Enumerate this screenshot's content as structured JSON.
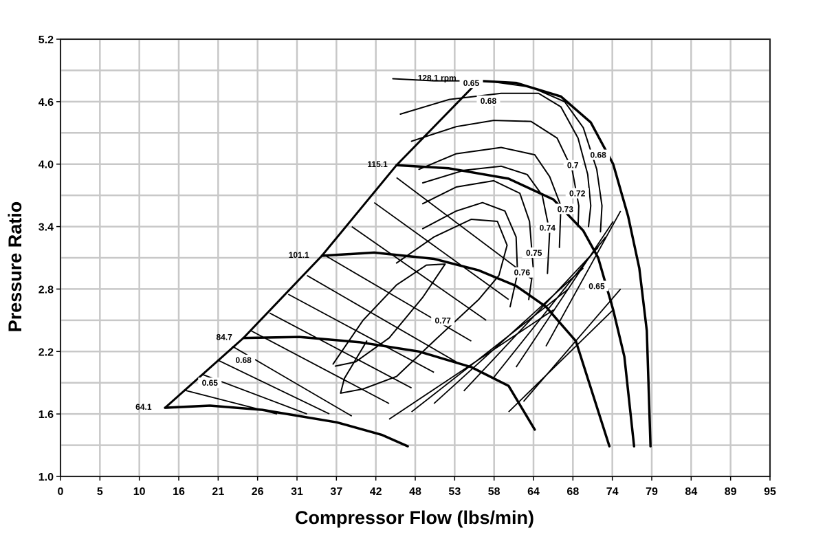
{
  "chart_data": {
    "type": "line",
    "title": "",
    "xlabel": "Compressor Flow (lbs/min)",
    "ylabel": "Pressure Ratio",
    "xlim": [
      0,
      95
    ],
    "ylim": [
      1.0,
      5.2
    ],
    "grid": true,
    "x_tick_labels": [
      "0",
      "5",
      "10",
      "16",
      "21",
      "26",
      "31",
      "37",
      "42",
      "48",
      "53",
      "58",
      "64",
      "68",
      "74",
      "79",
      "84",
      "89",
      "95"
    ],
    "y_tick_labels": [
      "1.0",
      "1.6",
      "2.2",
      "2.8",
      "3.4",
      "4.0",
      "4.6",
      "5.2"
    ],
    "speed_lines": [
      {
        "name": "64.1",
        "points": [
          [
            14,
            1.66
          ],
          [
            20,
            1.68
          ],
          [
            27,
            1.64
          ],
          [
            37,
            1.52
          ],
          [
            43,
            1.4
          ],
          [
            46.5,
            1.29
          ]
        ]
      },
      {
        "name": "84.7",
        "points": [
          [
            24.5,
            2.33
          ],
          [
            32,
            2.34
          ],
          [
            40,
            2.29
          ],
          [
            48,
            2.2
          ],
          [
            55,
            2.05
          ],
          [
            60,
            1.87
          ],
          [
            63.5,
            1.45
          ]
        ]
      },
      {
        "name": "101.1",
        "points": [
          [
            35,
            3.12
          ],
          [
            42,
            3.15
          ],
          [
            50,
            3.09
          ],
          [
            56,
            2.98
          ],
          [
            61,
            2.83
          ],
          [
            65,
            2.63
          ],
          [
            69,
            2.3
          ],
          [
            73.5,
            1.29
          ]
        ]
      },
      {
        "name": "115.1",
        "points": [
          [
            45,
            3.99
          ],
          [
            52,
            3.96
          ],
          [
            60,
            3.86
          ],
          [
            66,
            3.66
          ],
          [
            70,
            3.36
          ],
          [
            72,
            3.1
          ],
          [
            74,
            2.6
          ],
          [
            75.5,
            2.15
          ],
          [
            76.8,
            1.29
          ]
        ]
      },
      {
        "name": "128.1 rpm",
        "points": [
          [
            56,
            4.8
          ],
          [
            61,
            4.78
          ],
          [
            67,
            4.65
          ],
          [
            71,
            4.4
          ],
          [
            74,
            4.0
          ],
          [
            76,
            3.5
          ],
          [
            77.5,
            3.0
          ],
          [
            78.5,
            2.4
          ],
          [
            79,
            1.29
          ]
        ]
      }
    ],
    "surge_line": [
      [
        14,
        1.66
      ],
      [
        24.5,
        2.33
      ],
      [
        35,
        3.12
      ],
      [
        45,
        3.99
      ],
      [
        56,
        4.8
      ]
    ],
    "efficiency_labels": [
      "0.65",
      "0.68",
      "0.7",
      "0.72",
      "0.73",
      "0.74",
      "0.75",
      "0.76",
      "0.77",
      "0.68",
      "0.65"
    ],
    "efficiency_islands": [
      {
        "name": "0.65",
        "points": [
          [
            44.5,
            4.82
          ],
          [
            50,
            4.8
          ],
          [
            57,
            4.8
          ],
          [
            63,
            4.74
          ],
          [
            67.5,
            4.6
          ],
          [
            70,
            4.35
          ],
          [
            71.8,
            3.95
          ],
          [
            72.5,
            3.6
          ],
          [
            72.3,
            3.35
          ]
        ]
      },
      {
        "name": "0.68",
        "points": [
          [
            45.5,
            4.48
          ],
          [
            52,
            4.62
          ],
          [
            59,
            4.68
          ],
          [
            64,
            4.68
          ],
          [
            67,
            4.55
          ],
          [
            69.3,
            4.25
          ],
          [
            70.6,
            3.9
          ],
          [
            71,
            3.6
          ],
          [
            70.7,
            3.4
          ]
        ]
      },
      {
        "name": "0.7",
        "points": [
          [
            47,
            4.22
          ],
          [
            53,
            4.36
          ],
          [
            58,
            4.42
          ],
          [
            63,
            4.41
          ],
          [
            66.5,
            4.25
          ],
          [
            68.5,
            3.95
          ],
          [
            69.4,
            3.6
          ],
          [
            69.3,
            3.4
          ]
        ]
      },
      {
        "name": "0.72",
        "points": [
          [
            48,
            3.95
          ],
          [
            53,
            4.1
          ],
          [
            59,
            4.16
          ],
          [
            63.5,
            4.09
          ],
          [
            65.5,
            3.88
          ],
          [
            67,
            3.6
          ],
          [
            66.8,
            3.2
          ]
        ]
      },
      {
        "name": "0.73",
        "points": [
          [
            48.5,
            3.82
          ],
          [
            54,
            3.94
          ],
          [
            59,
            3.98
          ],
          [
            62.5,
            3.9
          ],
          [
            64.5,
            3.7
          ],
          [
            65.5,
            3.35
          ],
          [
            65.2,
            2.95
          ]
        ]
      },
      {
        "name": "0.74",
        "points": [
          [
            48.5,
            3.62
          ],
          [
            53,
            3.78
          ],
          [
            58,
            3.84
          ],
          [
            61.5,
            3.72
          ],
          [
            62.8,
            3.45
          ],
          [
            63.3,
            3.0
          ],
          [
            62.7,
            2.7
          ]
        ]
      },
      {
        "name": "0.75",
        "points": [
          [
            48.5,
            3.38
          ],
          [
            53,
            3.55
          ],
          [
            56.5,
            3.63
          ],
          [
            59.5,
            3.55
          ],
          [
            61,
            3.3
          ],
          [
            61.2,
            2.95
          ],
          [
            60.2,
            2.63
          ]
        ]
      },
      {
        "name": "0.76",
        "points": [
          [
            45,
            3.05
          ],
          [
            50,
            3.3
          ],
          [
            55,
            3.47
          ],
          [
            58.5,
            3.45
          ],
          [
            59.8,
            3.22
          ],
          [
            58.7,
            2.93
          ],
          [
            56,
            2.7
          ],
          [
            50,
            2.3
          ],
          [
            45,
            1.96
          ],
          [
            40.5,
            1.84
          ],
          [
            37.5,
            1.8
          ],
          [
            38,
            1.94
          ],
          [
            41,
            2.3
          ]
        ]
      },
      {
        "name": "0.77",
        "points": [
          [
            36.5,
            2.08
          ],
          [
            40.5,
            2.5
          ],
          [
            45,
            2.84
          ],
          [
            49,
            3.03
          ],
          [
            51.5,
            3.04
          ],
          [
            48.5,
            2.72
          ],
          [
            44,
            2.33
          ],
          [
            39.5,
            2.1
          ],
          [
            36.8,
            2.06
          ]
        ]
      }
    ]
  }
}
